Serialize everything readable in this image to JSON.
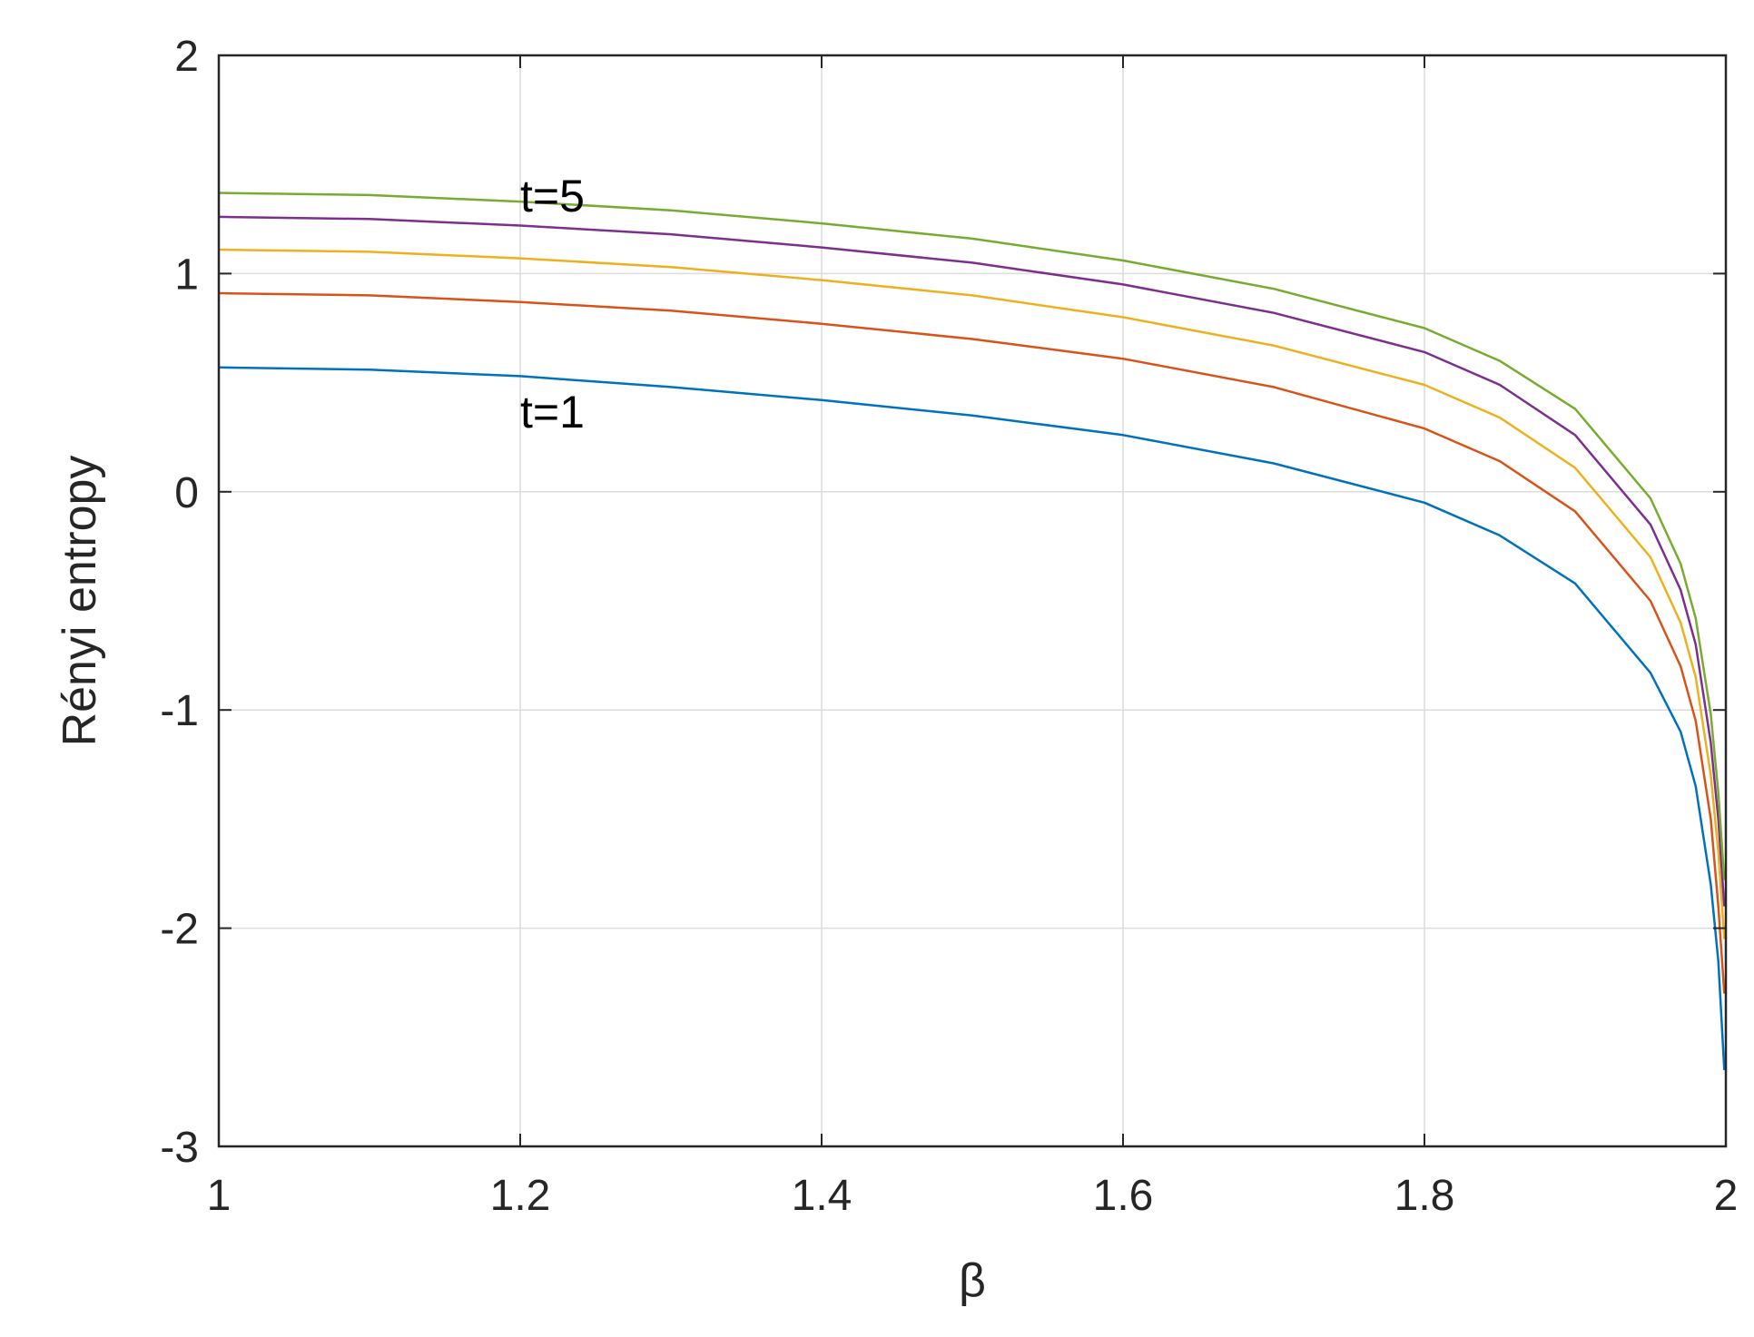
{
  "chart_data": {
    "type": "line",
    "title": "",
    "xlabel": "β",
    "ylabel": "Rényi entropy",
    "xlim": [
      1,
      2
    ],
    "ylim": [
      -3,
      2
    ],
    "xticks": [
      1,
      1.2,
      1.4,
      1.6,
      1.8,
      2
    ],
    "xtick_labels": [
      "1",
      "1.2",
      "1.4",
      "1.6",
      "1.8",
      "2"
    ],
    "yticks": [
      -3,
      -2,
      -1,
      0,
      1,
      2
    ],
    "ytick_labels": [
      "-3",
      "-2",
      "-1",
      "0",
      "1",
      "2"
    ],
    "grid": true,
    "legend": "none",
    "series": [
      {
        "color": "#0072BD",
        "x": [
          1.0,
          1.1,
          1.2,
          1.3,
          1.4,
          1.5,
          1.6,
          1.7,
          1.8,
          1.85,
          1.9,
          1.95,
          1.97,
          1.98,
          1.99,
          1.995,
          1.999
        ],
        "y": [
          0.57,
          0.56,
          0.53,
          0.48,
          0.42,
          0.35,
          0.26,
          0.13,
          -0.05,
          -0.2,
          -0.42,
          -0.83,
          -1.1,
          -1.35,
          -1.8,
          -2.15,
          -2.65
        ]
      },
      {
        "color": "#D95319",
        "x": [
          1.0,
          1.1,
          1.2,
          1.3,
          1.4,
          1.5,
          1.6,
          1.7,
          1.8,
          1.85,
          1.9,
          1.95,
          1.97,
          1.98,
          1.99,
          1.995,
          1.999
        ],
        "y": [
          0.91,
          0.9,
          0.87,
          0.83,
          0.77,
          0.7,
          0.61,
          0.48,
          0.29,
          0.14,
          -0.09,
          -0.5,
          -0.8,
          -1.05,
          -1.5,
          -1.9,
          -2.3
        ]
      },
      {
        "color": "#EDB120",
        "x": [
          1.0,
          1.1,
          1.2,
          1.3,
          1.4,
          1.5,
          1.6,
          1.7,
          1.8,
          1.85,
          1.9,
          1.95,
          1.97,
          1.98,
          1.99,
          1.995,
          1.999
        ],
        "y": [
          1.11,
          1.1,
          1.07,
          1.03,
          0.97,
          0.9,
          0.8,
          0.67,
          0.49,
          0.34,
          0.11,
          -0.3,
          -0.6,
          -0.85,
          -1.3,
          -1.65,
          -2.05
        ]
      },
      {
        "color": "#7E2F8E",
        "x": [
          1.0,
          1.1,
          1.2,
          1.3,
          1.4,
          1.5,
          1.6,
          1.7,
          1.8,
          1.85,
          1.9,
          1.95,
          1.97,
          1.98,
          1.99,
          1.995,
          1.999
        ],
        "y": [
          1.26,
          1.25,
          1.22,
          1.18,
          1.12,
          1.05,
          0.95,
          0.82,
          0.64,
          0.49,
          0.26,
          -0.15,
          -0.45,
          -0.7,
          -1.15,
          -1.5,
          -1.9
        ]
      },
      {
        "color": "#77AC30",
        "x": [
          1.0,
          1.1,
          1.2,
          1.3,
          1.4,
          1.5,
          1.6,
          1.7,
          1.8,
          1.85,
          1.9,
          1.95,
          1.97,
          1.98,
          1.99,
          1.995,
          1.999
        ],
        "y": [
          1.37,
          1.36,
          1.33,
          1.29,
          1.23,
          1.16,
          1.06,
          0.93,
          0.75,
          0.6,
          0.38,
          -0.03,
          -0.33,
          -0.58,
          -1.02,
          -1.38,
          -1.78
        ]
      }
    ],
    "annotations": [
      {
        "text": "t=5",
        "x": 1.2,
        "y": 1.36
      },
      {
        "text": "t=1",
        "x": 1.2,
        "y": 0.37
      }
    ]
  }
}
